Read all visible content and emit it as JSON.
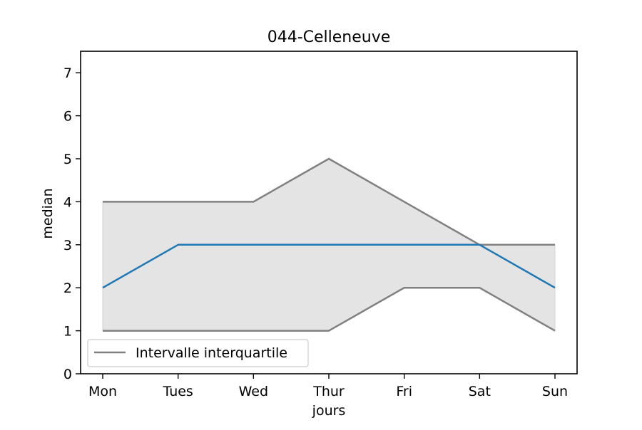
{
  "chart_data": {
    "type": "line",
    "title": "044-Celleneuve",
    "xlabel": "jours",
    "ylabel": "median",
    "categories": [
      "Mon",
      "Tues",
      "Wed",
      "Thur",
      "Fri",
      "Sat",
      "Sun"
    ],
    "ylim": [
      0,
      7.5
    ],
    "yticks": [
      "0",
      "1",
      "2",
      "3",
      "4",
      "5",
      "6",
      "7"
    ],
    "grid": false,
    "legend_position": "lower-left",
    "legend_label": "Intervalle interquartile",
    "series": [
      {
        "values": [
          2,
          3,
          3,
          3,
          3,
          3,
          2
        ],
        "color": "#1f77b4"
      }
    ],
    "interquartile": {
      "q1": [
        1,
        1,
        1,
        1,
        2,
        2,
        1
      ],
      "q3": [
        4,
        4,
        4,
        5,
        4,
        3,
        3
      ],
      "line_color": "#808080",
      "fill_color": "#e4e4e4"
    }
  }
}
